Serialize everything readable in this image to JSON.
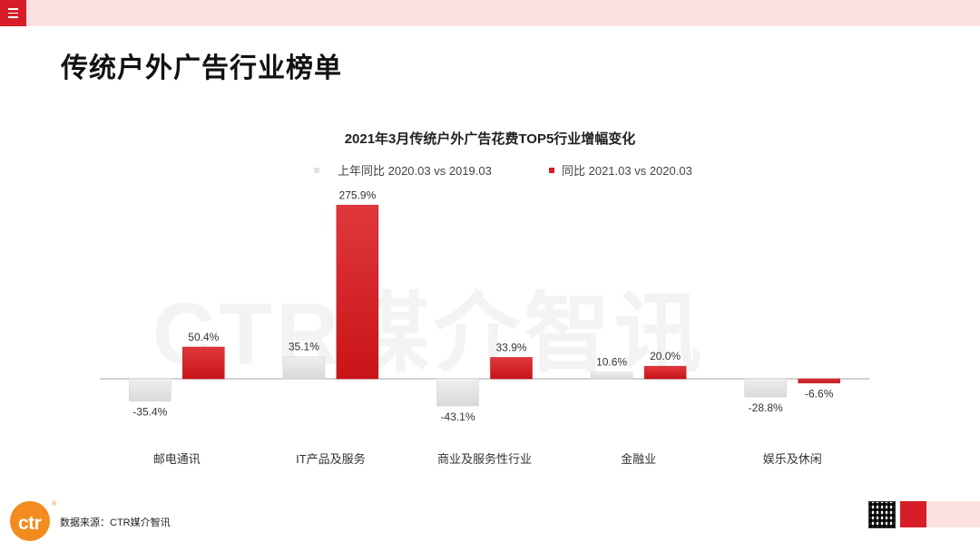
{
  "header": {
    "menu_icon": "hamburger-menu-icon",
    "accent_color": "#d71e28",
    "band_color": "#fbe1e2"
  },
  "page_title": "传统户外广告行业榜单",
  "watermark": "CTR媒介智讯",
  "chart_data": {
    "type": "bar",
    "title": "2021年3月传统户外广告花费TOP5行业增幅变化",
    "categories": [
      "邮电通讯",
      "IT产品及服务",
      "商业及服务性行业",
      "金融业",
      "娱乐及休闲"
    ],
    "series": [
      {
        "name": "上年同比 2020.03 vs 2019.03",
        "color": "#e3e3e3",
        "values": [
          -35.4,
          35.1,
          -43.1,
          10.6,
          -28.8
        ],
        "labels": [
          "-35.4%",
          "35.1%",
          "-43.1%",
          "10.6%",
          "-28.8%"
        ]
      },
      {
        "name": "同比 2021.03 vs 2020.03",
        "color": "#d71e28",
        "values": [
          50.4,
          275.9,
          33.9,
          20.0,
          -6.6
        ],
        "labels": [
          "50.4%",
          "275.9%",
          "33.9%",
          "20.0%",
          "-6.6%"
        ]
      }
    ],
    "unit": "%",
    "ylim": [
      -60,
      280
    ],
    "grid": false,
    "legend_position": "top"
  },
  "footer": {
    "source": "数据来源：CTR媒介智讯",
    "logo_text": "ctr",
    "logo_reg": "®",
    "logo_color": "#f28c1e"
  }
}
